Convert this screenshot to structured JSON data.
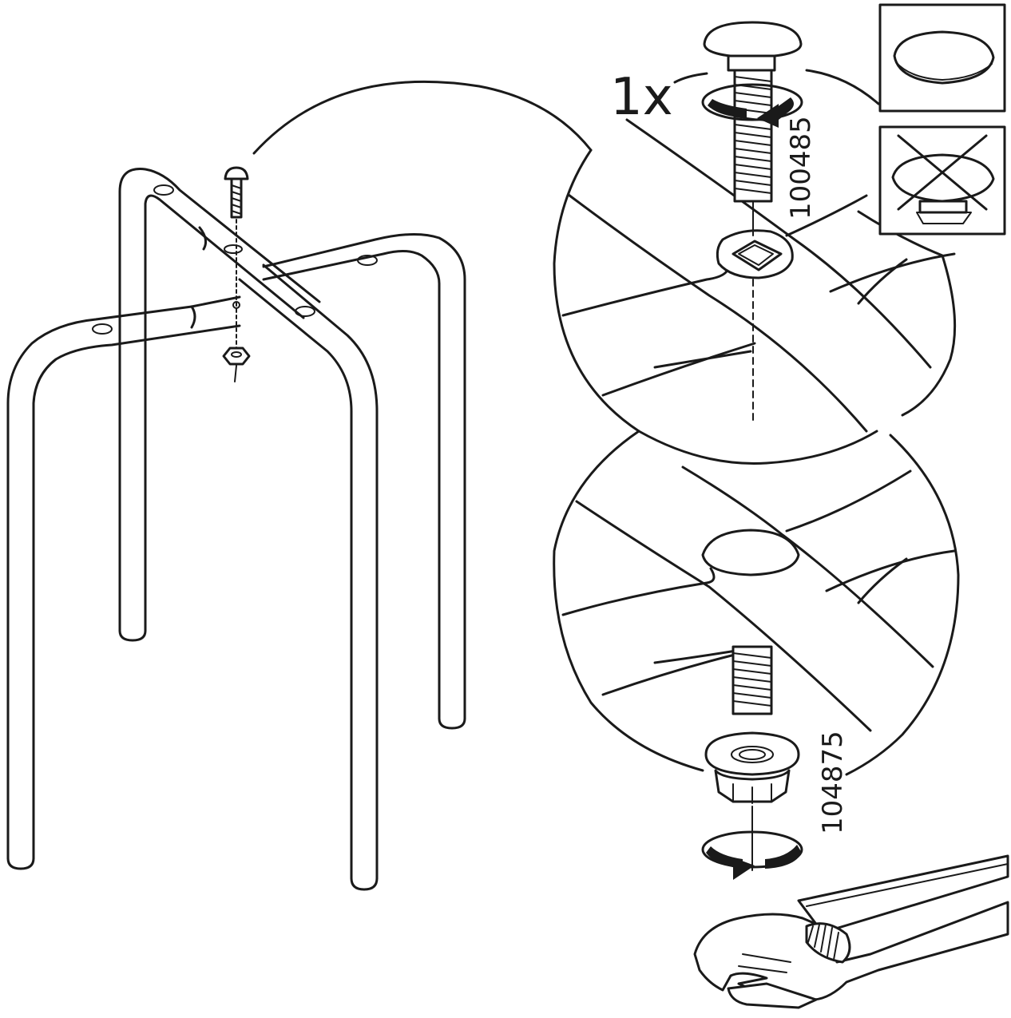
{
  "quantity_label": "1x",
  "part_numbers": {
    "bolt": "100485",
    "nut": "104875"
  },
  "icons": {
    "correct_example": "bolt-head-correct-icon",
    "incorrect_example": "bolt-head-incorrect-cross-icon",
    "tool": "adjustable-wrench-icon",
    "rotation": "rotation-arrow-icon"
  },
  "colors": {
    "line": "#1a1a1a",
    "background": "#ffffff"
  }
}
